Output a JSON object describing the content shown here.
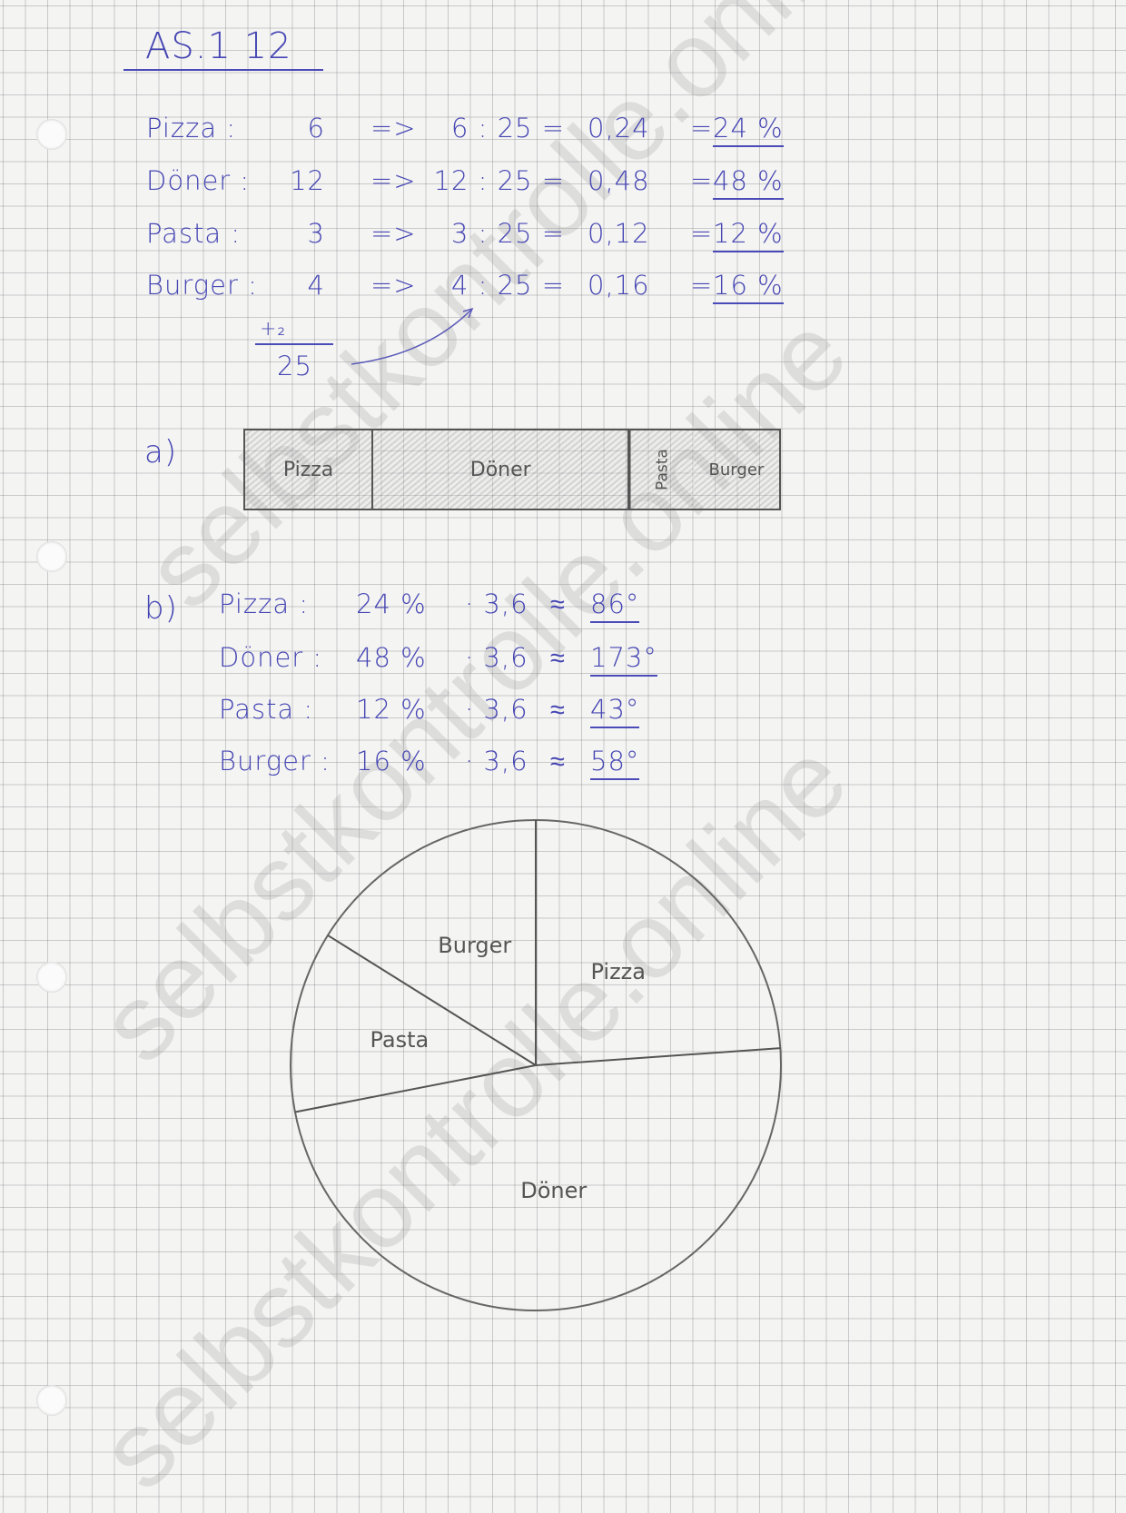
{
  "title": "AS.1 12",
  "rows": [
    {
      "item": "Pizza :",
      "count": "6",
      "arrow": "=>",
      "calc": "6 : 25 =",
      "decimal": "0,24",
      "eq": "=",
      "percent": "24 %"
    },
    {
      "item": "Döner :",
      "count": "12",
      "arrow": "=>",
      "calc": "12 : 25 =",
      "decimal": "0,48",
      "eq": "=",
      "percent": "48 %"
    },
    {
      "item": "Pasta :",
      "count": "3",
      "arrow": "=>",
      "calc": "3 : 25 =",
      "decimal": "0,12",
      "eq": "=",
      "percent": "12 %"
    },
    {
      "item": "Burger :",
      "count": "4",
      "arrow": "=>",
      "calc": "4 : 25 =",
      "decimal": "0,16",
      "eq": "=",
      "percent": "16 %"
    }
  ],
  "sum": {
    "plus": "+₂",
    "total": "25"
  },
  "part_a": {
    "label": "a)",
    "segments": [
      {
        "label": "Pizza",
        "percent": 24
      },
      {
        "label": "Döner",
        "percent": 48
      },
      {
        "label": "Pasta",
        "percent": 12
      },
      {
        "label": "Burger",
        "percent": 16
      }
    ]
  },
  "part_b": {
    "label": "b)",
    "rows": [
      {
        "item": "Pizza :",
        "percent": "24 %",
        "factor": "· 3,6",
        "approx": "≈",
        "degrees": "86°"
      },
      {
        "item": "Döner :",
        "percent": "48 %",
        "factor": "· 3,6",
        "approx": "≈",
        "degrees": "173°"
      },
      {
        "item": "Pasta :",
        "percent": "12 %",
        "factor": "· 3,6",
        "approx": "≈",
        "degrees": "43°"
      },
      {
        "item": "Burger :",
        "percent": "16 %",
        "factor": "· 3,6",
        "approx": "≈",
        "degrees": "58°"
      }
    ]
  },
  "chart_data": {
    "type": "pie",
    "start": "top",
    "direction": "clockwise",
    "slices": [
      {
        "label": "Pizza",
        "degrees": 86
      },
      {
        "label": "Döner",
        "degrees": 173
      },
      {
        "label": "Pasta",
        "degrees": 43
      },
      {
        "label": "Burger",
        "degrees": 58
      }
    ]
  },
  "colors": {
    "ink": "#4646b4",
    "pencil": "#555555",
    "paper": "#f4f4f2"
  },
  "watermark": "selbstkontrolle.online"
}
